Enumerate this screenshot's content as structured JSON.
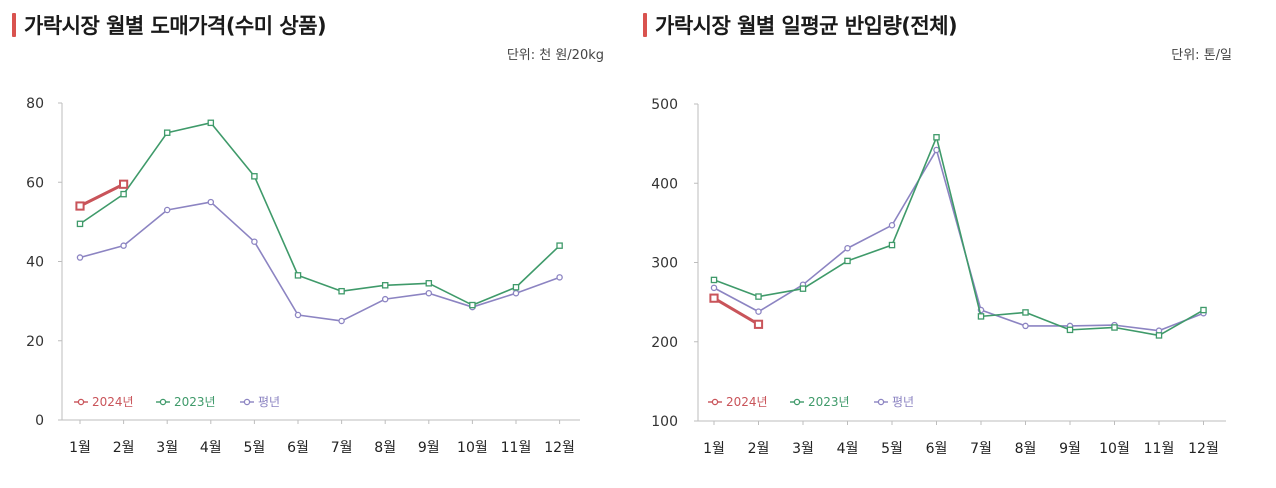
{
  "charts": [
    {
      "title": "가락시장 월별 도매가격(수미 상품)",
      "unit": "단위: 천 원/20kg"
    },
    {
      "title": "가락시장 월별 일평균 반입량(전체)",
      "unit": "단위: 톤/일"
    }
  ],
  "colors": {
    "s2024": "#c9545a",
    "s2023": "#3f9a6a",
    "avg": "#8c84c2",
    "accent": "#d9534f"
  },
  "chart_data": [
    {
      "type": "line",
      "title": "가락시장 월별 도매가격(수미 상품)",
      "xlabel": "",
      "ylabel": "",
      "unit": "단위: 천 원/20kg",
      "categories": [
        "1월",
        "2월",
        "3월",
        "4월",
        "5월",
        "6월",
        "7월",
        "8월",
        "9월",
        "10월",
        "11월",
        "12월"
      ],
      "ylim": [
        0,
        80
      ],
      "yticks": [
        0,
        20,
        40,
        60,
        80
      ],
      "legend_position": "bottom-left",
      "grid": false,
      "series": [
        {
          "name": "2024년",
          "values": [
            54,
            59.5,
            null,
            null,
            null,
            null,
            null,
            null,
            null,
            null,
            null,
            null
          ]
        },
        {
          "name": "2023년",
          "values": [
            49.5,
            57,
            72.5,
            75,
            61.5,
            36.5,
            32.5,
            34,
            34.5,
            29,
            33.5,
            44
          ]
        },
        {
          "name": "평년",
          "values": [
            41,
            44,
            53,
            55,
            45,
            26.5,
            25,
            30.5,
            32,
            28.5,
            32,
            36
          ]
        }
      ]
    },
    {
      "type": "line",
      "title": "가락시장 월별 일평균 반입량(전체)",
      "xlabel": "",
      "ylabel": "",
      "unit": "단위: 톤/일",
      "categories": [
        "1월",
        "2월",
        "3월",
        "4월",
        "5월",
        "6월",
        "7월",
        "8월",
        "9월",
        "10월",
        "11월",
        "12월"
      ],
      "ylim": [
        100,
        500
      ],
      "yticks": [
        100,
        200,
        300,
        400,
        500
      ],
      "legend_position": "bottom-left",
      "grid": false,
      "series": [
        {
          "name": "2024년",
          "values": [
            255,
            222,
            null,
            null,
            null,
            null,
            null,
            null,
            null,
            null,
            null,
            null
          ]
        },
        {
          "name": "2023년",
          "values": [
            278,
            257,
            267,
            302,
            322,
            458,
            232,
            237,
            215,
            218,
            208,
            240
          ]
        },
        {
          "name": "평년",
          "values": [
            268,
            238,
            272,
            318,
            347,
            442,
            240,
            220,
            220,
            221,
            214,
            236
          ]
        }
      ]
    }
  ]
}
